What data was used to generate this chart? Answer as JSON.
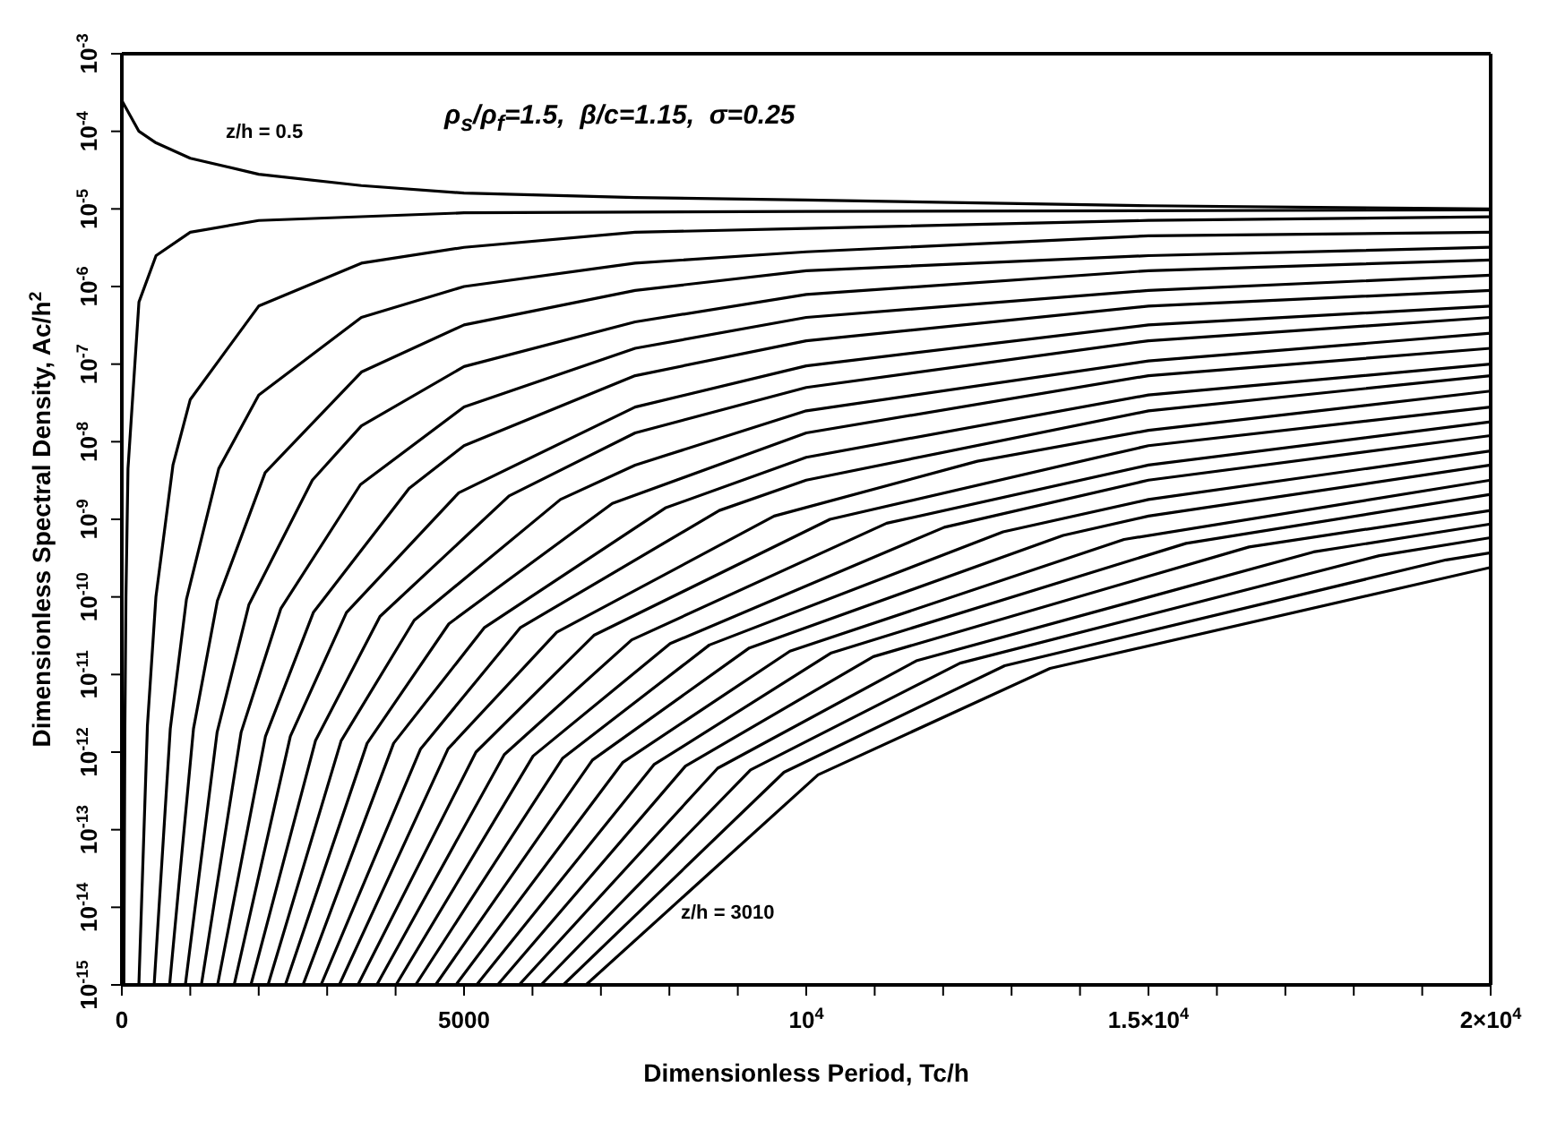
{
  "chart_data": {
    "type": "line",
    "title": "ρ$_{s}$/ρ$_{f}$=1.5,  β/c=1.15,  σ=0.25",
    "xlabel": "Dimensionless Period, Tc/h",
    "ylabel": "Dimensionless Spectral Density, Ac/h$^{2}$",
    "log": "y",
    "marker": "none",
    "line_style": "solid",
    "xlim": [
      0,
      20000
    ],
    "xticks": [
      0,
      {
        "value": 1000,
        "label": null
      },
      {
        "value": 2000,
        "label": null
      },
      {
        "value": 3000,
        "label": null
      },
      {
        "value": 4000,
        "label": null
      },
      5000,
      {
        "value": 6000,
        "label": null
      },
      {
        "value": 7000,
        "label": null
      },
      {
        "value": 8000,
        "label": null
      },
      {
        "value": 9000,
        "label": null
      },
      {
        "value": 10000,
        "label": "10$^{4}$"
      },
      {
        "value": 11000,
        "label": null
      },
      {
        "value": 12000,
        "label": null
      },
      {
        "value": 13000,
        "label": null
      },
      {
        "value": 14000,
        "label": null
      },
      {
        "value": 15000,
        "label": "1.5×10$^{4}$"
      },
      {
        "value": 16000,
        "label": null
      },
      {
        "value": 17000,
        "label": null
      },
      {
        "value": 18000,
        "label": null
      },
      {
        "value": 19000,
        "label": null
      },
      {
        "value": 20000,
        "label": "2×10$^{4}$"
      }
    ],
    "ylim": [
      1e-15,
      0.001
    ],
    "yticks": [
      {
        "value": 1e-15,
        "label": "10$^{-15}$"
      },
      {
        "value": 1e-14,
        "label": "10$^{-14}$"
      },
      {
        "value": 1e-13,
        "label": "10$^{-13}$"
      },
      {
        "value": 1e-12,
        "label": "10$^{-12}$"
      },
      {
        "value": 1e-11,
        "label": "10$^{-11}$"
      },
      {
        "value": 1e-10,
        "label": "10$^{-10}$"
      },
      {
        "value": 1e-09,
        "label": "10$^{-9}$"
      },
      {
        "value": 1e-08,
        "label": "10$^{-8}$"
      },
      {
        "value": 1e-07,
        "label": "10$^{-7}$"
      },
      {
        "value": 1e-06,
        "label": "10$^{-6}$"
      },
      {
        "value": 1e-05,
        "label": "10$^{-5}$"
      },
      {
        "value": 0.0001,
        "label": "10$^{-4}$"
      },
      {
        "value": 0.001,
        "label": "10$^{-3}$"
      }
    ],
    "annotations": [
      "z/h = 0.5",
      "z/h = 3010"
    ],
    "series": [
      {
        "color": "#000000",
        "x": [
          0,
          250,
          500,
          1000,
          2000,
          3500,
          5000,
          7500,
          10000,
          15000,
          20000
        ],
        "values": [
          0.00025,
          0.0001,
          7.1e-05,
          4.5e-05,
          2.8e-05,
          2e-05,
          1.6e-05,
          1.4e-05,
          1.3e-05,
          1.1e-05,
          1e-05
        ]
      },
      {
        "color": "#000000",
        "x": [
          30,
          45,
          60,
          90,
          250,
          500,
          1000,
          2000,
          5000,
          10000,
          20000
        ],
        "values": [
          1e-15,
          2.2e-12,
          1e-10,
          4.5e-09,
          6.3e-07,
          2.5e-06,
          5e-06,
          7.1e-06,
          8.9e-06,
          9.3e-06,
          9.7e-06
        ]
      },
      {
        "color": "#000000",
        "x": [
          249,
          374,
          498,
          747,
          1000,
          2000,
          3500,
          5000,
          7500,
          10000,
          15000,
          20000
        ],
        "values": [
          1e-15,
          2.2e-12,
          1e-10,
          5e-09,
          3.5e-08,
          5.6e-07,
          2e-06,
          3.2e-06,
          5e-06,
          5.6e-06,
          7.1e-06,
          7.9e-06
        ]
      },
      {
        "color": "#000000",
        "x": [
          472,
          708,
          944,
          1416,
          2000,
          3500,
          5000,
          7500,
          10000,
          15000,
          20000
        ],
        "values": [
          1e-15,
          2e-12,
          9.3e-11,
          4.5e-09,
          4e-08,
          4e-07,
          1e-06,
          2e-06,
          2.8e-06,
          4.5e-06,
          5e-06
        ]
      },
      {
        "color": "#000000",
        "x": [
          698,
          1047,
          1396,
          2094,
          3500,
          5000,
          7500,
          10000,
          15000,
          20000
        ],
        "values": [
          1e-15,
          2e-12,
          8.9e-11,
          4e-09,
          7.9e-08,
          3.2e-07,
          8.9e-07,
          1.6e-06,
          2.5e-06,
          3.2e-06
        ]
      },
      {
        "color": "#000000",
        "x": [
          928,
          1392,
          1856,
          2784,
          3500,
          5000,
          7500,
          10000,
          15000,
          20000
        ],
        "values": [
          1e-15,
          1.8e-12,
          7.9e-11,
          3.2e-09,
          1.6e-08,
          9.3e-08,
          3.5e-07,
          7.9e-07,
          1.6e-06,
          2.2e-06
        ]
      },
      {
        "color": "#000000",
        "x": [
          1162,
          1743,
          2324,
          3486,
          5000,
          7500,
          10000,
          15000,
          20000
        ],
        "values": [
          1e-15,
          1.8e-12,
          7.1e-11,
          2.8e-09,
          2.8e-08,
          1.6e-07,
          4e-07,
          8.9e-07,
          1.4e-06
        ]
      },
      {
        "color": "#000000",
        "x": [
          1399,
          2099,
          2798,
          4197,
          5000,
          7500,
          10000,
          15000,
          20000
        ],
        "values": [
          1e-15,
          1.6e-12,
          6.3e-11,
          2.5e-09,
          8.9e-09,
          7.1e-08,
          2e-07,
          5.6e-07,
          8.9e-07
        ]
      },
      {
        "color": "#000000",
        "x": [
          1641,
          2462,
          3282,
          4923,
          7500,
          10000,
          15000,
          20000
        ],
        "values": [
          1e-15,
          1.6e-12,
          6.3e-11,
          2.2e-09,
          2.8e-08,
          9.5e-08,
          3.2e-07,
          5.6e-07
        ]
      },
      {
        "color": "#000000",
        "x": [
          1886,
          2829,
          3772,
          5658,
          7500,
          10000,
          15000,
          20000
        ],
        "values": [
          1e-15,
          1.4e-12,
          5.6e-11,
          2e-09,
          1.3e-08,
          5e-08,
          2e-07,
          4e-07
        ]
      },
      {
        "color": "#000000",
        "x": [
          2136,
          3204,
          4272,
          6408,
          7500,
          10000,
          15000,
          20000
        ],
        "values": [
          1e-15,
          1.4e-12,
          5e-11,
          1.8e-09,
          5e-09,
          2.5e-08,
          1.1e-07,
          2.5e-07
        ]
      },
      {
        "color": "#000000",
        "x": [
          2389,
          3584,
          4778,
          7167,
          10000,
          15000,
          20000
        ],
        "values": [
          1e-15,
          1.3e-12,
          4.5e-11,
          1.6e-09,
          1.3e-08,
          7.1e-08,
          1.6e-07
        ]
      },
      {
        "color": "#000000",
        "x": [
          2647,
          3971,
          5294,
          7941,
          10000,
          15000,
          20000
        ],
        "values": [
          1e-15,
          1.3e-12,
          4e-11,
          1.4e-09,
          6.3e-09,
          4e-08,
          1e-07
        ]
      },
      {
        "color": "#000000",
        "x": [
          2910,
          4365,
          5820,
          8730,
          10000,
          15000,
          20000
        ],
        "values": [
          1e-15,
          1.1e-12,
          4e-11,
          1.3e-09,
          3.2e-09,
          2.5e-08,
          7.1e-08
        ]
      },
      {
        "color": "#000000",
        "x": [
          3177,
          4766,
          6354,
          9531,
          12500,
          15000,
          20000
        ],
        "values": [
          1e-15,
          1.1e-12,
          3.5e-11,
          1.1e-09,
          5.6e-09,
          1.4e-08,
          4.5e-08
        ]
      },
      {
        "color": "#000000",
        "x": [
          3449,
          5174,
          6898,
          10347,
          15000,
          20000
        ],
        "values": [
          1e-15,
          1e-12,
          3.2e-11,
          1e-09,
          8.9e-09,
          2.8e-08
        ]
      },
      {
        "color": "#000000",
        "x": [
          3725,
          5588,
          7450,
          11175,
          15000,
          20000
        ],
        "values": [
          1e-15,
          9.3e-13,
          2.8e-11,
          8.9e-10,
          5e-09,
          1.8e-08
        ]
      },
      {
        "color": "#000000",
        "x": [
          4006,
          6009,
          8012,
          12018,
          15000,
          20000
        ],
        "values": [
          1e-15,
          8.9e-13,
          2.5e-11,
          7.9e-10,
          3.2e-09,
          1.2e-08
        ]
      },
      {
        "color": "#000000",
        "x": [
          4292,
          6438,
          8584,
          12876,
          15000,
          20000
        ],
        "values": [
          1e-15,
          8.3e-13,
          2.4e-11,
          6.9e-10,
          1.8e-09,
          7.6e-09
        ]
      },
      {
        "color": "#000000",
        "x": [
          4584,
          6876,
          9168,
          13752,
          15000,
          20000
        ],
        "values": [
          1e-15,
          7.9e-13,
          2.2e-11,
          6.2e-10,
          1.1e-09,
          5e-09
        ]
      },
      {
        "color": "#000000",
        "x": [
          4881,
          7322,
          9762,
          14643,
          20000
        ],
        "values": [
          1e-15,
          7.4e-13,
          2e-11,
          5.5e-10,
          3.2e-09
        ]
      },
      {
        "color": "#000000",
        "x": [
          5183,
          7775,
          10366,
          15549,
          20000
        ],
        "values": [
          1e-15,
          6.9e-13,
          1.9e-11,
          4.9e-10,
          2.1e-09
        ]
      },
      {
        "color": "#000000",
        "x": [
          5490,
          8235,
          10980,
          16470,
          20000
        ],
        "values": [
          1e-15,
          6.6e-13,
          1.7e-11,
          4.4e-10,
          1.3e-09
        ]
      },
      {
        "color": "#000000",
        "x": [
          5804,
          8706,
          11608,
          17412,
          20000
        ],
        "values": [
          1e-15,
          6.2e-13,
          1.5e-11,
          3.8e-10,
          8.7e-10
        ]
      },
      {
        "color": "#000000",
        "x": [
          6124,
          9186,
          12248,
          18372,
          20000
        ],
        "values": [
          1e-15,
          5.9e-13,
          1.4e-11,
          3.4e-10,
          5.8e-10
        ]
      },
      {
        "color": "#000000",
        "x": [
          6450,
          9675,
          12900,
          19350,
          20000
        ],
        "values": [
          1e-15,
          5.5e-13,
          1.3e-11,
          3e-10,
          3.7e-10
        ]
      },
      {
        "color": "#000000",
        "x": [
          6781,
          10172,
          13562,
          20000
        ],
        "values": [
          1e-15,
          5.1e-13,
          1.2e-11,
          2.4e-10
        ]
      }
    ]
  }
}
